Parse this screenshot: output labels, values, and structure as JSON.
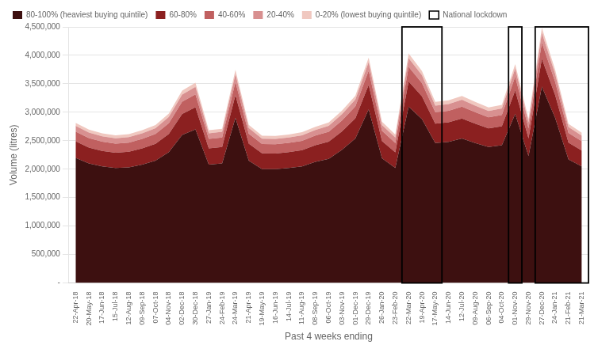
{
  "chart_data": {
    "type": "area",
    "stacked": true,
    "xlabel": "Past 4 weeks ending",
    "ylabel": "Volume (litres)",
    "categories": [
      "22-Apr-18",
      "20-May-18",
      "17-Jun-18",
      "15-Jul-18",
      "12-Aug-18",
      "09-Sep-18",
      "07-Oct-18",
      "04-Nov-18",
      "02-Dec-18",
      "30-Dec-18",
      "27-Jan-19",
      "24-Feb-19",
      "24-Mar-19",
      "21-Apr-19",
      "19-May-19",
      "16-Jun-19",
      "14-Jul-19",
      "11-Aug-19",
      "08-Sep-19",
      "06-Oct-19",
      "03-Nov-19",
      "01-Dec-19",
      "29-Dec-19",
      "26-Jan-20",
      "23-Feb-20",
      "22-Mar-20",
      "19-Apr-20",
      "17-May-20",
      "14-Jun-20",
      "12-Jul-20",
      "09-Aug-20",
      "06-Sep-20",
      "04-Oct-20",
      "01-Nov-20",
      "29-Nov-20",
      "27-Dec-20",
      "24-Jan-21",
      "21-Feb-21",
      "21-Mar-21"
    ],
    "series": [
      {
        "name": "80-100% (heaviest buying quintile)",
        "color": "#3d1010",
        "values": [
          2200000,
          2100000,
          2050000,
          2020000,
          2030000,
          2080000,
          2150000,
          2300000,
          2600000,
          2700000,
          2080000,
          2100000,
          2900000,
          2150000,
          2000000,
          2000000,
          2020000,
          2050000,
          2130000,
          2180000,
          2340000,
          2540000,
          3050000,
          2190000,
          2020000,
          3100000,
          2880000,
          2460000,
          2480000,
          2540000,
          2460000,
          2390000,
          2420000,
          2970000,
          2230000,
          3450000,
          2900000,
          2170000,
          2050000
        ]
      },
      {
        "name": "60-80%",
        "color": "#8b2020",
        "values": [
          290000,
          280000,
          270000,
          270000,
          275000,
          285000,
          295000,
          320000,
          370000,
          390000,
          285000,
          288000,
          400000,
          298000,
          278000,
          276000,
          278000,
          283000,
          290000,
          302000,
          325000,
          355000,
          430000,
          305000,
          276000,
          440000,
          400000,
          340000,
          344000,
          352000,
          340000,
          328000,
          336000,
          415000,
          308000,
          490000,
          400000,
          295000,
          278000
        ]
      },
      {
        "name": "40-60%",
        "color": "#c06060",
        "values": [
          170000,
          165000,
          162000,
          160000,
          162000,
          168000,
          173000,
          188000,
          215000,
          225000,
          167000,
          169000,
          234000,
          174000,
          163000,
          162000,
          163000,
          166000,
          170000,
          177000,
          190000,
          207000,
          252000,
          178000,
          163000,
          258000,
          234000,
          200000,
          202000,
          206000,
          200000,
          193000,
          196000,
          242000,
          180000,
          286000,
          234000,
          173000,
          163000
        ]
      },
      {
        "name": "20-40%",
        "color": "#d89090",
        "values": [
          100000,
          97000,
          95000,
          94000,
          95000,
          98000,
          102000,
          110000,
          126000,
          132000,
          98000,
          99000,
          137000,
          102000,
          96000,
          95000,
          96000,
          97000,
          100000,
          104000,
          112000,
          121000,
          148000,
          104000,
          96000,
          152000,
          137000,
          117000,
          118000,
          121000,
          117000,
          113000,
          115000,
          142000,
          106000,
          168000,
          137000,
          102000,
          96000
        ]
      },
      {
        "name": "0-20% (lowest buying quintile)",
        "color": "#f0c8c0",
        "values": [
          55000,
          53000,
          52000,
          52000,
          52000,
          54000,
          56000,
          60000,
          69000,
          73000,
          54000,
          54000,
          75000,
          56000,
          52000,
          52000,
          52000,
          53000,
          55000,
          57000,
          61000,
          67000,
          81000,
          57000,
          52000,
          83000,
          75000,
          64000,
          65000,
          66000,
          64000,
          62000,
          63000,
          78000,
          58000,
          92000,
          75000,
          56000,
          52000
        ]
      }
    ],
    "lockdown_boxes": {
      "name": "National lockdown",
      "ranges": [
        {
          "start": "22-Mar-20",
          "end": "17-May-20"
        },
        {
          "start": "01-Nov-20",
          "end": "01-Nov-20"
        },
        {
          "start": "27-Dec-20",
          "end": "21-Mar-21"
        }
      ]
    },
    "ylim": [
      0,
      4500000
    ],
    "yticks": [
      {
        "value": 0,
        "label": "-"
      },
      {
        "value": 500000,
        "label": "500,000"
      },
      {
        "value": 1000000,
        "label": "1,000,000"
      },
      {
        "value": 1500000,
        "label": "1,500,000"
      },
      {
        "value": 2000000,
        "label": "2,000,000"
      },
      {
        "value": 2500000,
        "label": "2,500,000"
      },
      {
        "value": 3000000,
        "label": "3,000,000"
      },
      {
        "value": 3500000,
        "label": "3,500,000"
      },
      {
        "value": 4000000,
        "label": "4,000,000"
      },
      {
        "value": 4500000,
        "label": "4,500,000"
      }
    ],
    "grid": "y",
    "legend": "upper left"
  }
}
